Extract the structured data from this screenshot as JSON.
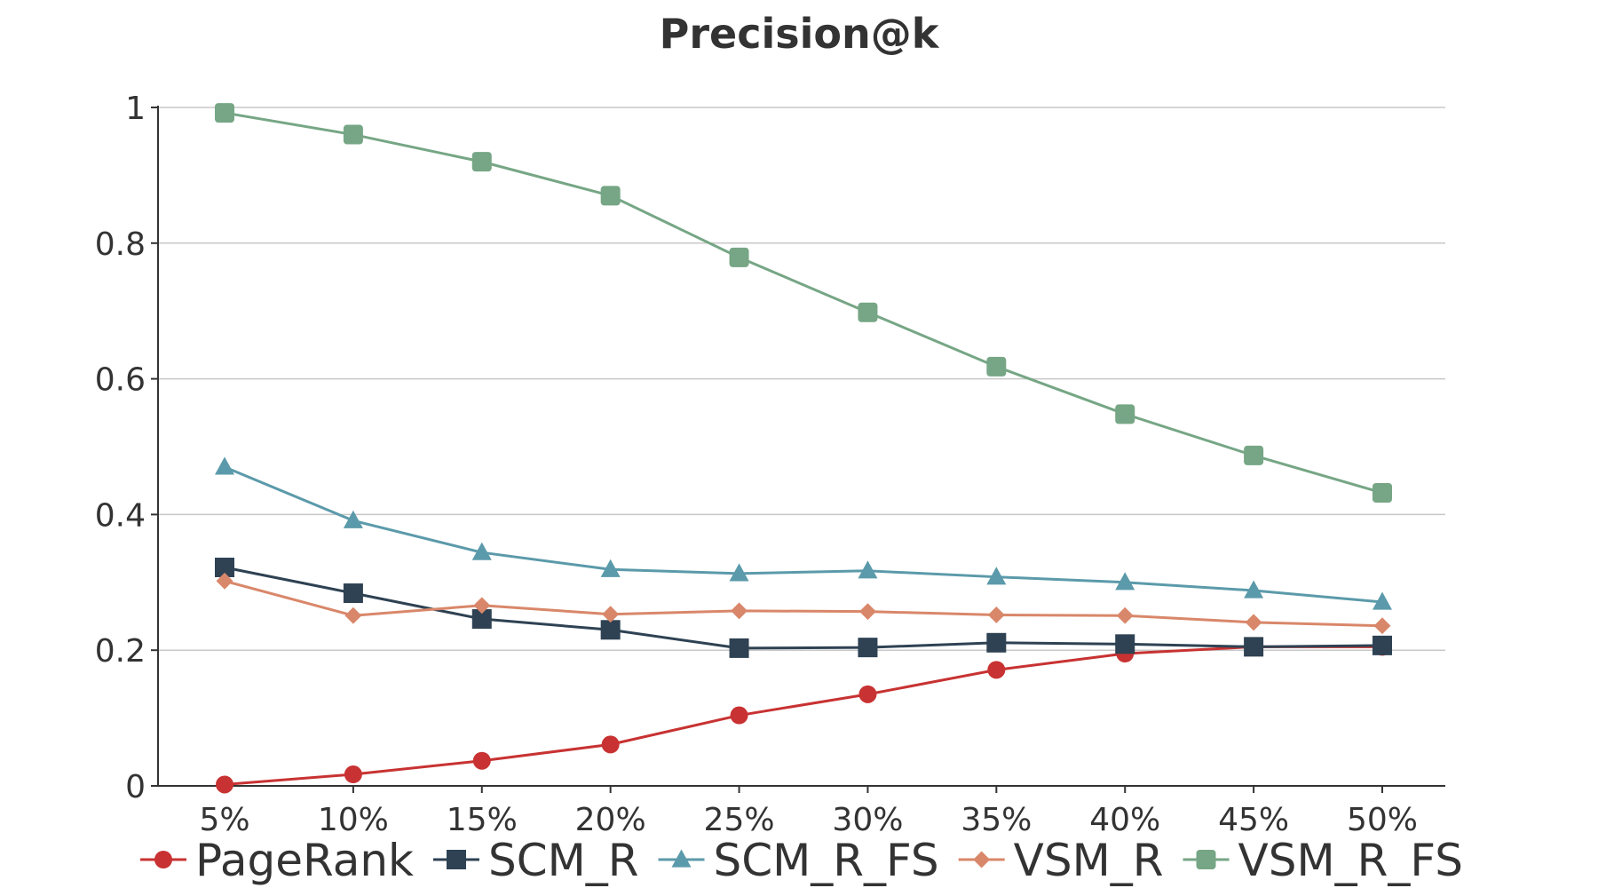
{
  "chart_data": {
    "type": "line",
    "title": "Precision@k",
    "xlabel": "",
    "ylabel": "",
    "categories": [
      "5%",
      "10%",
      "15%",
      "20%",
      "25%",
      "30%",
      "35%",
      "40%",
      "45%",
      "50%"
    ],
    "ylim": [
      0,
      1
    ],
    "yticks": [
      0,
      0.2,
      0.4,
      0.6,
      0.8,
      1
    ],
    "ytick_labels": [
      "0",
      "0.2",
      "0.4",
      "0.6",
      "0.8",
      "1"
    ],
    "grid": "horizontal",
    "legend_position": "bottom",
    "series": [
      {
        "name": "PageRank",
        "color": "#c83232",
        "marker": "circle",
        "values": [
          0.002,
          0.017,
          0.037,
          0.061,
          0.104,
          0.135,
          0.171,
          0.195,
          0.205,
          0.205
        ]
      },
      {
        "name": "SCM_R",
        "color": "#2e4253",
        "marker": "square",
        "values": [
          0.322,
          0.284,
          0.246,
          0.23,
          0.203,
          0.204,
          0.211,
          0.209,
          0.205,
          0.207
        ]
      },
      {
        "name": "SCM_R_FS",
        "color": "#5b9aaa",
        "marker": "triangle",
        "values": [
          0.47,
          0.391,
          0.344,
          0.319,
          0.313,
          0.317,
          0.308,
          0.3,
          0.288,
          0.271
        ]
      },
      {
        "name": "VSM_R",
        "color": "#d9876a",
        "marker": "diamond",
        "values": [
          0.302,
          0.251,
          0.266,
          0.253,
          0.258,
          0.257,
          0.252,
          0.251,
          0.241,
          0.236
        ]
      },
      {
        "name": "VSM_R_FS",
        "color": "#76a685",
        "marker": "rounded-square",
        "values": [
          0.992,
          0.96,
          0.92,
          0.87,
          0.779,
          0.698,
          0.618,
          0.548,
          0.487,
          0.432
        ]
      }
    ]
  }
}
